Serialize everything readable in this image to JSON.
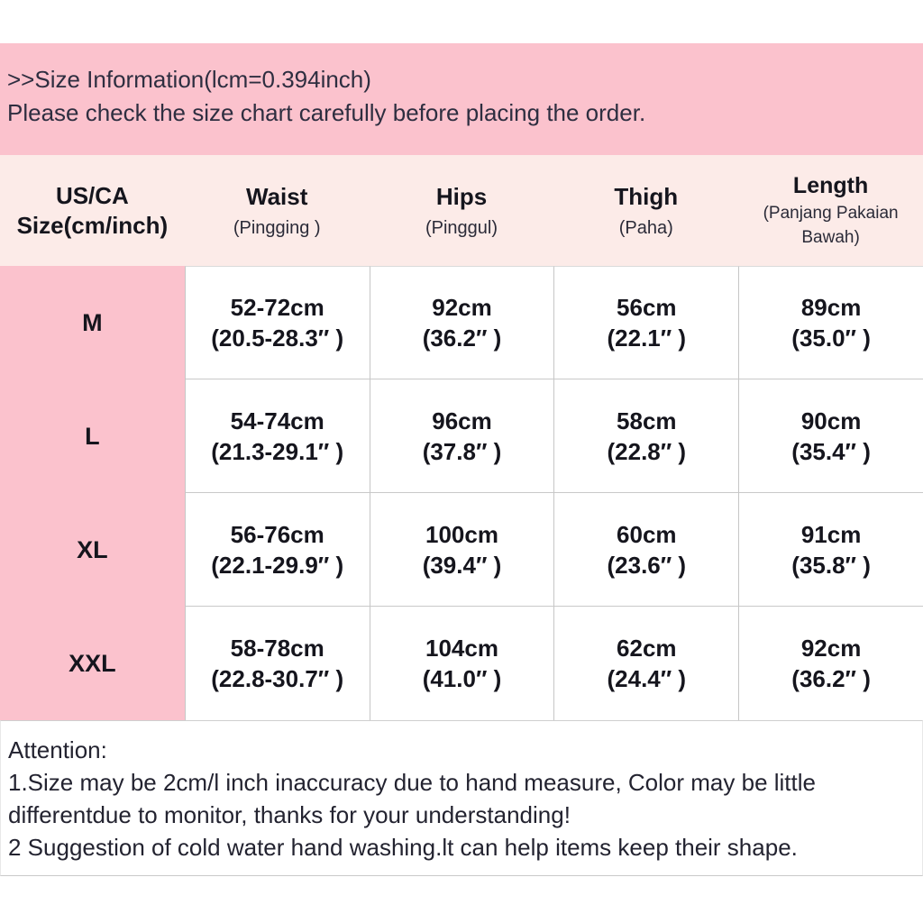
{
  "banner": {
    "title": ">>Size Information(lcm=0.394inch)",
    "subtitle": "Please check the size chart carefully before placing the order."
  },
  "table": {
    "size_header": {
      "line1": "US/CA",
      "line2": "Size(cm/inch)"
    },
    "columns": [
      {
        "title": "Waist",
        "subtitle": "(Pingging )"
      },
      {
        "title": "Hips",
        "subtitle": "(Pinggul)"
      },
      {
        "title": "Thigh",
        "subtitle": "(Paha)"
      },
      {
        "title": "Length",
        "subtitle": "(Panjang Pakaian Bawah)"
      }
    ],
    "rows": [
      {
        "size": "M",
        "cells": [
          [
            "52-72cm",
            "(20.5-28.3″ )"
          ],
          [
            "92cm",
            "(36.2″ )"
          ],
          [
            "56cm",
            "(22.1″ )"
          ],
          [
            "89cm",
            "(35.0″ )"
          ]
        ]
      },
      {
        "size": "L",
        "cells": [
          [
            "54-74cm",
            "(21.3-29.1″ )"
          ],
          [
            "96cm",
            "(37.8″ )"
          ],
          [
            "58cm",
            "(22.8″ )"
          ],
          [
            "90cm",
            "(35.4″ )"
          ]
        ]
      },
      {
        "size": "XL",
        "cells": [
          [
            "56-76cm",
            "(22.1-29.9″ )"
          ],
          [
            "100cm",
            "(39.4″ )"
          ],
          [
            "60cm",
            "(23.6″ )"
          ],
          [
            "91cm",
            "(35.8″ )"
          ]
        ]
      },
      {
        "size": "XXL",
        "cells": [
          [
            "58-78cm",
            "(22.8-30.7″ )"
          ],
          [
            "104cm",
            "(41.0″ )"
          ],
          [
            "62cm",
            "(24.4″ )"
          ],
          [
            "92cm",
            "(36.2″ )"
          ]
        ]
      }
    ]
  },
  "attention": {
    "title": "Attention:",
    "lines": [
      "1.Size may be 2cm/l inch inaccuracy due to hand measure, Color may be little",
      "differentdue to monitor, thanks for your understanding!",
      "2 Suggestion of cold water hand washing.lt can help items keep their shape."
    ]
  },
  "colors": {
    "banner_pink": "#fbc2cd",
    "header_row_pink": "#fcebe8",
    "size_column_pink": "#fbc2cd",
    "text_dark": "#15151d",
    "border_gray": "#c6c6c6"
  }
}
